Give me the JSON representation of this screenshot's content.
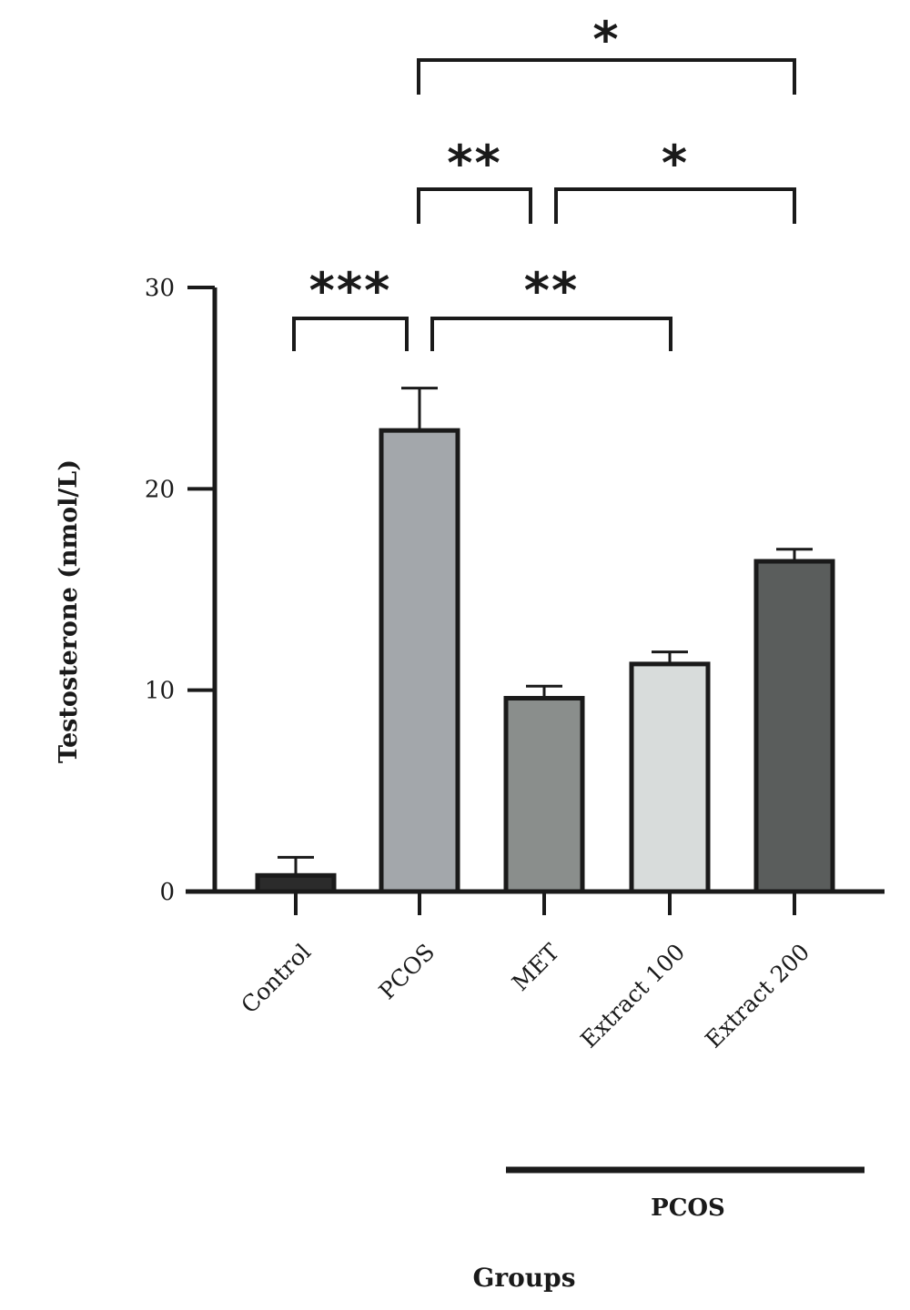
{
  "chart_data": {
    "type": "bar",
    "categories": [
      "Control",
      "PCOS",
      "MET",
      "Extract 100",
      "Extract 200"
    ],
    "values": [
      0.8,
      22.9,
      9.6,
      11.3,
      16.4
    ],
    "errors": [
      0.9,
      2.1,
      0.6,
      0.6,
      0.6
    ],
    "bar_colors": [
      "#2b2b2b",
      "#a3a7ab",
      "#8a8e8c",
      "#d8dcdb",
      "#5a5d5c"
    ],
    "title": "",
    "xlabel": "Groups",
    "ylabel": "Testosterone (nmol/L)",
    "ylim": [
      0,
      30
    ],
    "yticks": [
      0,
      10,
      20,
      30
    ],
    "grid": false,
    "significance": [
      {
        "from": "Control",
        "to": "PCOS",
        "label": "***"
      },
      {
        "from": "PCOS",
        "to": "Extract 100",
        "label": "**"
      },
      {
        "from": "PCOS",
        "to": "MET",
        "label": "**"
      },
      {
        "from": "MET",
        "to": "Extract 200",
        "label": "*"
      },
      {
        "from": "PCOS",
        "to": "Extract 200",
        "label": "*"
      }
    ],
    "group_annotation": {
      "label": "PCOS",
      "from": "MET",
      "to": "Extract 200"
    }
  }
}
